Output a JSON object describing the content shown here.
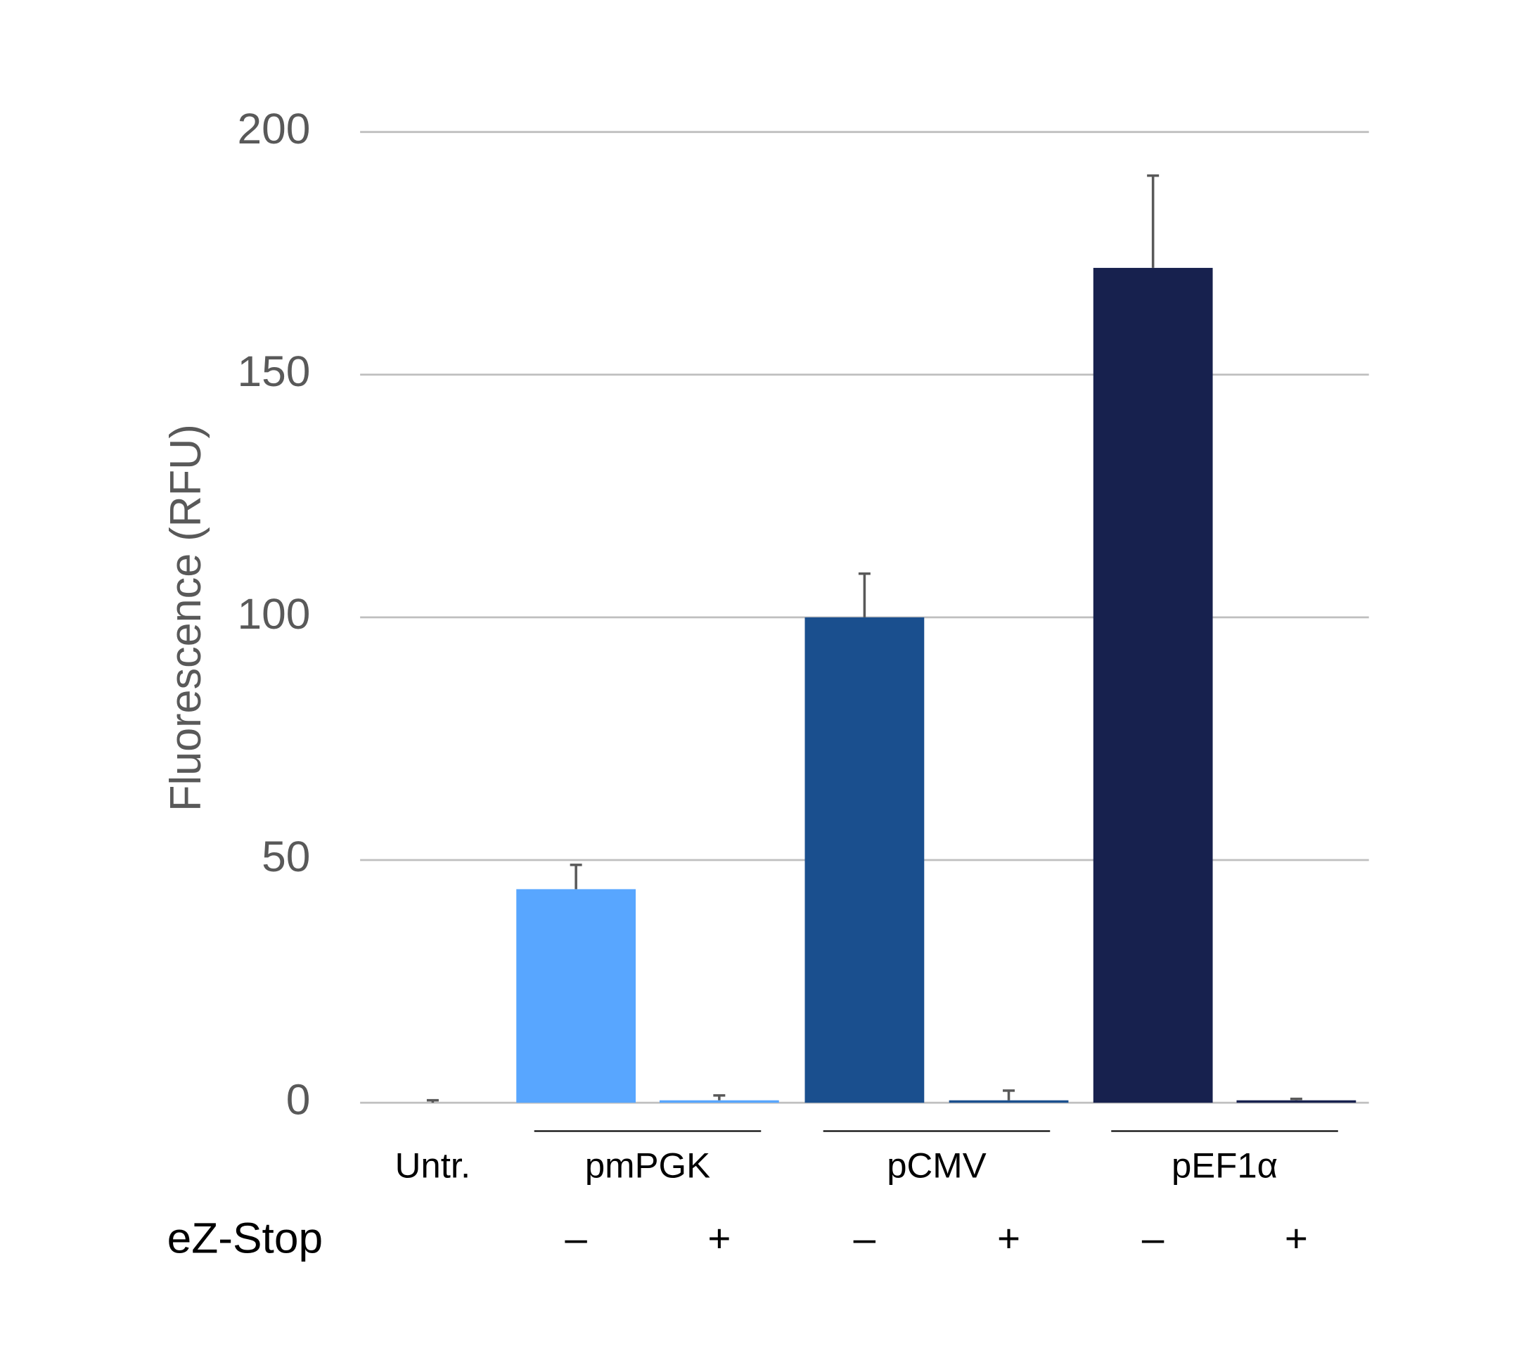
{
  "chart_data": {
    "type": "bar",
    "y_label": "Fluorescence (RFU)",
    "row_label": "eZ-Stop",
    "groups": [
      "Untr.",
      "pmPGK",
      "pCMV",
      "pEF1α"
    ],
    "categories": [
      null,
      "–",
      "+",
      "–",
      "+",
      "–",
      "+"
    ],
    "values": [
      0,
      44,
      0.5,
      100,
      0.5,
      172,
      0.5
    ],
    "errors": [
      0.5,
      5,
      1,
      9,
      2,
      19,
      0.3
    ],
    "colors": [
      "#8c8c8c",
      "#58a6ff",
      "#58a6ff",
      "#1a4f8e",
      "#1a4f8e",
      "#17214e",
      "#17214e"
    ],
    "ylim": [
      0,
      200
    ],
    "yticks": [
      0,
      50,
      100,
      150,
      200
    ],
    "grid": true
  }
}
